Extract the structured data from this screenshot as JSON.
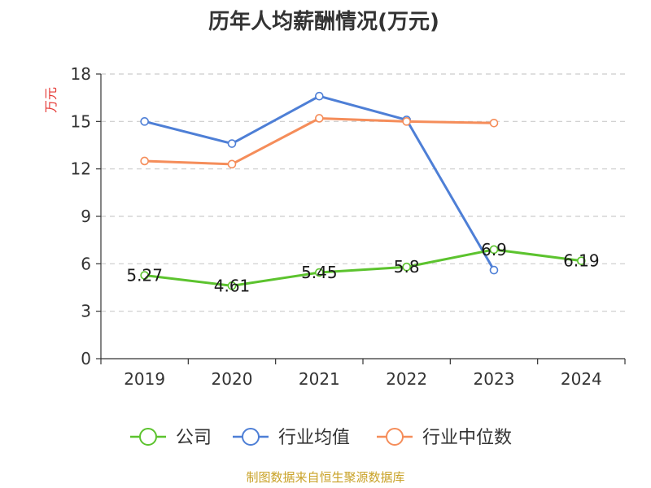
{
  "chart_data": {
    "type": "line",
    "title": "历年人均薪酬情况(万元)",
    "ylabel": "万元",
    "xlabel": "",
    "categories": [
      "2019",
      "2020",
      "2021",
      "2022",
      "2023",
      "2024"
    ],
    "yticks": [
      "0",
      "3",
      "6",
      "9",
      "12",
      "15",
      "18"
    ],
    "ylim": [
      0,
      18
    ],
    "grid": true,
    "legend_position": "bottom",
    "series": [
      {
        "name": "公司",
        "color": "#5cc32e",
        "values": [
          5.27,
          4.61,
          5.45,
          5.8,
          6.9,
          6.19
        ],
        "labels": [
          "5.27",
          "4.61",
          "5.45",
          "5.8",
          "6.9",
          "6.19"
        ]
      },
      {
        "name": "行业均值",
        "color": "#4e7fd6",
        "values": [
          15.0,
          13.6,
          16.6,
          15.1,
          5.6,
          null
        ],
        "labels": []
      },
      {
        "name": "行业中位数",
        "color": "#f58d5a",
        "values": [
          12.5,
          12.3,
          15.2,
          15.0,
          14.9,
          null
        ],
        "labels": []
      }
    ]
  },
  "footer": {
    "source": "制图数据来自恒生聚源数据库"
  },
  "colors": {
    "title": "#333333",
    "axis_text": "#333333",
    "ylabel": "#e53935",
    "grid": "#cccccc",
    "source": "#c9a227"
  }
}
